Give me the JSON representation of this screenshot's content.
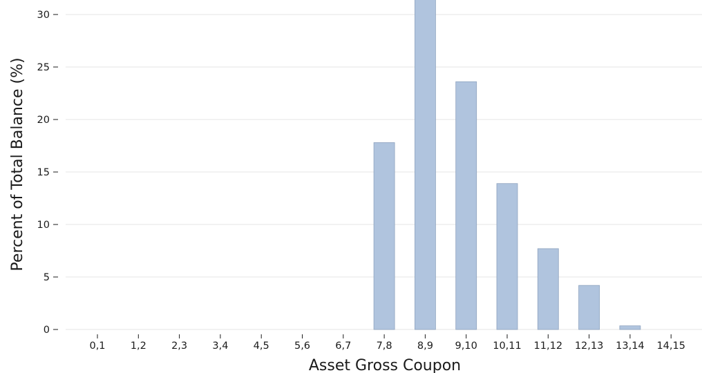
{
  "chart_data": {
    "type": "bar",
    "title": "",
    "xlabel": "Asset Gross Coupon",
    "ylabel": "Percent of Total Balance (%)",
    "categories": [
      "0,1",
      "1,2",
      "2,3",
      "3,4",
      "4,5",
      "5,6",
      "6,7",
      "7,8",
      "8,9",
      "9,10",
      "10,11",
      "11,12",
      "12,13",
      "13,14",
      "14,15"
    ],
    "values": [
      0,
      0,
      0,
      0,
      0,
      0,
      0,
      17.8,
      31.8,
      23.6,
      13.9,
      7.7,
      4.2,
      0.35,
      0
    ],
    "yticks": [
      0,
      5,
      10,
      15,
      20,
      25,
      30
    ],
    "ylim": [
      0,
      30.7
    ],
    "grid": "horizontal",
    "legend": "none",
    "colors": {
      "bar_fill": "#b0c4de",
      "bar_stroke": "#8ea3bf",
      "grid": "#ededed",
      "text": "#1a1a1a"
    }
  }
}
